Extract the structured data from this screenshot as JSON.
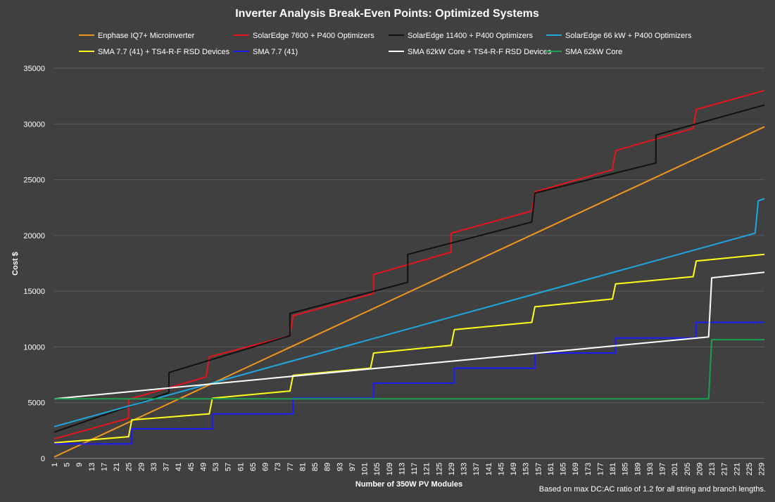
{
  "chart_data": {
    "type": "line",
    "title": "Inverter Analysis Break-Even Points: Optimized Systems",
    "xlabel": "Number of 350W PV Modules",
    "ylabel": "Cost $",
    "note": "Based on max DC:AC ratio of 1.2 for all string and branch lengths.",
    "xlim": [
      1,
      230
    ],
    "ylim": [
      0,
      35000
    ],
    "y_ticks": [
      "0",
      "5000",
      "10000",
      "15000",
      "20000",
      "25000",
      "30000",
      "35000"
    ],
    "x_ticks": [
      "1",
      "5",
      "9",
      "13",
      "17",
      "21",
      "25",
      "29",
      "33",
      "37",
      "41",
      "45",
      "49",
      "53",
      "57",
      "61",
      "65",
      "69",
      "73",
      "77",
      "81",
      "85",
      "89",
      "93",
      "97",
      "101",
      "105",
      "109",
      "113",
      "117",
      "121",
      "125",
      "129",
      "133",
      "137",
      "141",
      "145",
      "149",
      "153",
      "157",
      "161",
      "165",
      "169",
      "173",
      "177",
      "181",
      "185",
      "189",
      "193",
      "197",
      "201",
      "205",
      "209",
      "213",
      "217",
      "221",
      "225",
      "229"
    ],
    "grid": true,
    "legend_position": "top",
    "series": [
      {
        "name": "Enphase IQ7+ Microinverter",
        "color": "#f0961e",
        "x": [
          1,
          230
        ],
        "y": [
          130,
          29750
        ]
      },
      {
        "name": "SolarEdge 7600 + P400 Optimizers",
        "color": "#e8141c",
        "x": [
          1,
          25,
          25,
          50,
          51,
          77,
          78,
          104,
          104,
          129,
          129,
          155,
          156,
          181,
          182,
          207,
          208,
          230
        ],
        "y": [
          1750,
          3600,
          5300,
          7300,
          9100,
          11000,
          12800,
          14800,
          16500,
          18500,
          20200,
          22200,
          23900,
          25900,
          27600,
          29600,
          31300,
          33000
        ]
      },
      {
        "name": "SolarEdge 11400 + P400 Optimizers",
        "color": "#111111",
        "x": [
          1,
          38,
          38,
          77,
          77,
          115,
          115,
          155,
          156,
          195,
          195,
          230
        ],
        "y": [
          2350,
          5900,
          7700,
          11000,
          13000,
          15800,
          18300,
          21200,
          23800,
          26500,
          29000,
          31700
        ]
      },
      {
        "name": "SolarEdge 66 kW + P400 Optimizers",
        "color": "#1fa8e0",
        "x": [
          1,
          227,
          228,
          230
        ],
        "y": [
          2850,
          20200,
          23100,
          23300
        ]
      },
      {
        "name": "SMA 7.7 (41) + TS4-R-F RSD Devices",
        "color": "#ffff1a",
        "x": [
          1,
          25,
          26,
          51,
          52,
          77,
          78,
          103,
          104,
          129,
          130,
          155,
          156,
          181,
          182,
          207,
          208,
          230
        ],
        "y": [
          1400,
          1950,
          3450,
          4000,
          5400,
          6050,
          7450,
          8100,
          9450,
          10150,
          11550,
          12200,
          13600,
          14300,
          15650,
          16300,
          17700,
          18300
        ]
      },
      {
        "name": "SMA 7.7 (41)",
        "color": "#1a1aff",
        "x": [
          1,
          26,
          26,
          52,
          52,
          78,
          78,
          104,
          104,
          130,
          130,
          156,
          156,
          182,
          182,
          208,
          208,
          230
        ],
        "y": [
          1300,
          1300,
          2650,
          2650,
          4000,
          4000,
          5400,
          5400,
          6750,
          6750,
          8100,
          8100,
          9450,
          9450,
          10800,
          10800,
          12200,
          12200
        ]
      },
      {
        "name": "SMA 62kW Core + TS4-R-F RSD Devices",
        "color": "#ffffff",
        "x": [
          1,
          212,
          213,
          230
        ],
        "y": [
          5350,
          10900,
          16200,
          16700
        ]
      },
      {
        "name": "SMA 62kW Core",
        "color": "#1aa050",
        "x": [
          1,
          212,
          213,
          230
        ],
        "y": [
          5350,
          5350,
          10650,
          10650
        ]
      }
    ]
  }
}
